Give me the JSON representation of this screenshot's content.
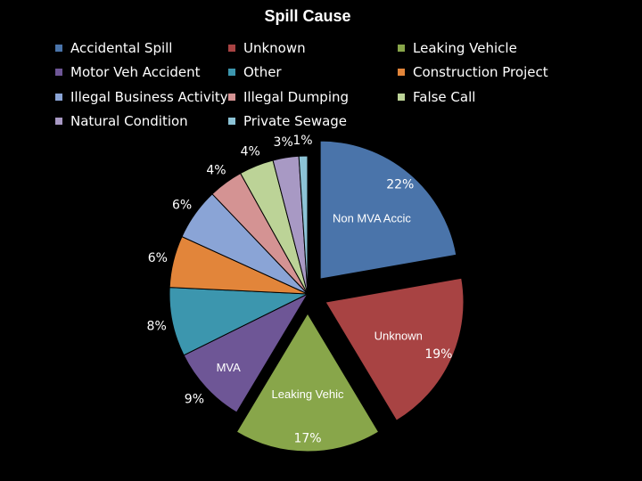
{
  "chart_data": {
    "type": "pie",
    "title": "Spill Cause",
    "legend_position": "top",
    "slices": [
      {
        "name": "Accidental Spill",
        "value": 22,
        "label": "22%",
        "category_label": "Non MVA Accic",
        "color": "#4a74aa",
        "exploded": true
      },
      {
        "name": "Unknown",
        "value": 19,
        "label": "19%",
        "category_label": "Unknown",
        "color": "#a84343",
        "exploded": true
      },
      {
        "name": "Leaking Vehicle",
        "value": 17,
        "label": "17%",
        "category_label": "Leaking Vehic",
        "color": "#88a64a",
        "exploded": true
      },
      {
        "name": "Motor Veh Accident",
        "value": 9,
        "label": "9%",
        "category_label": "MVA",
        "color": "#6e5696",
        "exploded": false
      },
      {
        "name": "Other",
        "value": 8,
        "label": "8%",
        "category_label": "",
        "color": "#3c96ae",
        "exploded": false
      },
      {
        "name": "Construction Project",
        "value": 6,
        "label": "6%",
        "category_label": "",
        "color": "#e2853a",
        "exploded": false
      },
      {
        "name": "Illegal Business Activity",
        "value": 6,
        "label": "6%",
        "category_label": "",
        "color": "#8aa4d6",
        "exploded": false
      },
      {
        "name": "Illegal Dumping",
        "value": 4,
        "label": "4%",
        "category_label": "",
        "color": "#d49393",
        "exploded": false
      },
      {
        "name": "False Call",
        "value": 4,
        "label": "4%",
        "category_label": "",
        "color": "#bcd397",
        "exploded": false
      },
      {
        "name": "Natural Condition",
        "value": 3,
        "label": "3%",
        "category_label": "",
        "color": "#a899c4",
        "exploded": false
      },
      {
        "name": "Private Sewage",
        "value": 1,
        "label": "1%",
        "category_label": "",
        "color": "#8cc3d6",
        "exploded": false
      }
    ]
  }
}
